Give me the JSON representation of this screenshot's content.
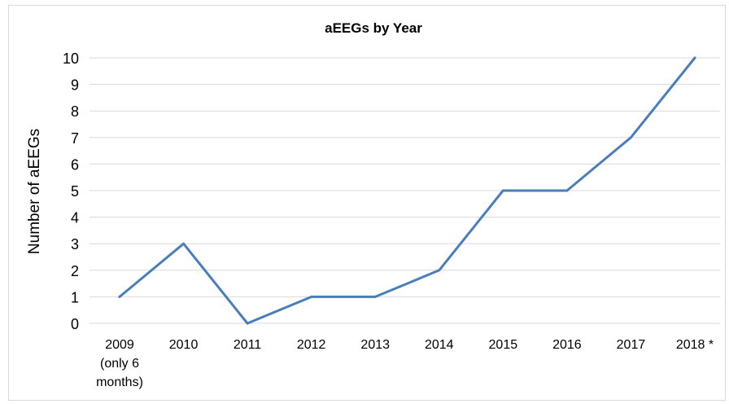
{
  "chart_data": {
    "type": "line",
    "title": "aEEGs by Year",
    "xlabel": "",
    "ylabel": "Number of aEEGs",
    "categories": [
      [
        "2009",
        "(only 6",
        "months)"
      ],
      [
        "2010"
      ],
      [
        "2011"
      ],
      [
        "2012"
      ],
      [
        "2013"
      ],
      [
        "2014"
      ],
      [
        "2015"
      ],
      [
        "2016"
      ],
      [
        "2017"
      ],
      [
        "2018 *"
      ]
    ],
    "values": [
      1,
      3,
      0,
      1,
      1,
      2,
      5,
      5,
      7,
      10
    ],
    "ylim": [
      0,
      10
    ],
    "yticks": [
      0,
      1,
      2,
      3,
      4,
      5,
      6,
      7,
      8,
      9,
      10
    ],
    "grid": true,
    "legend": "none",
    "line_color": "#4a7ebb",
    "grid_color": "#d9d9d9"
  }
}
